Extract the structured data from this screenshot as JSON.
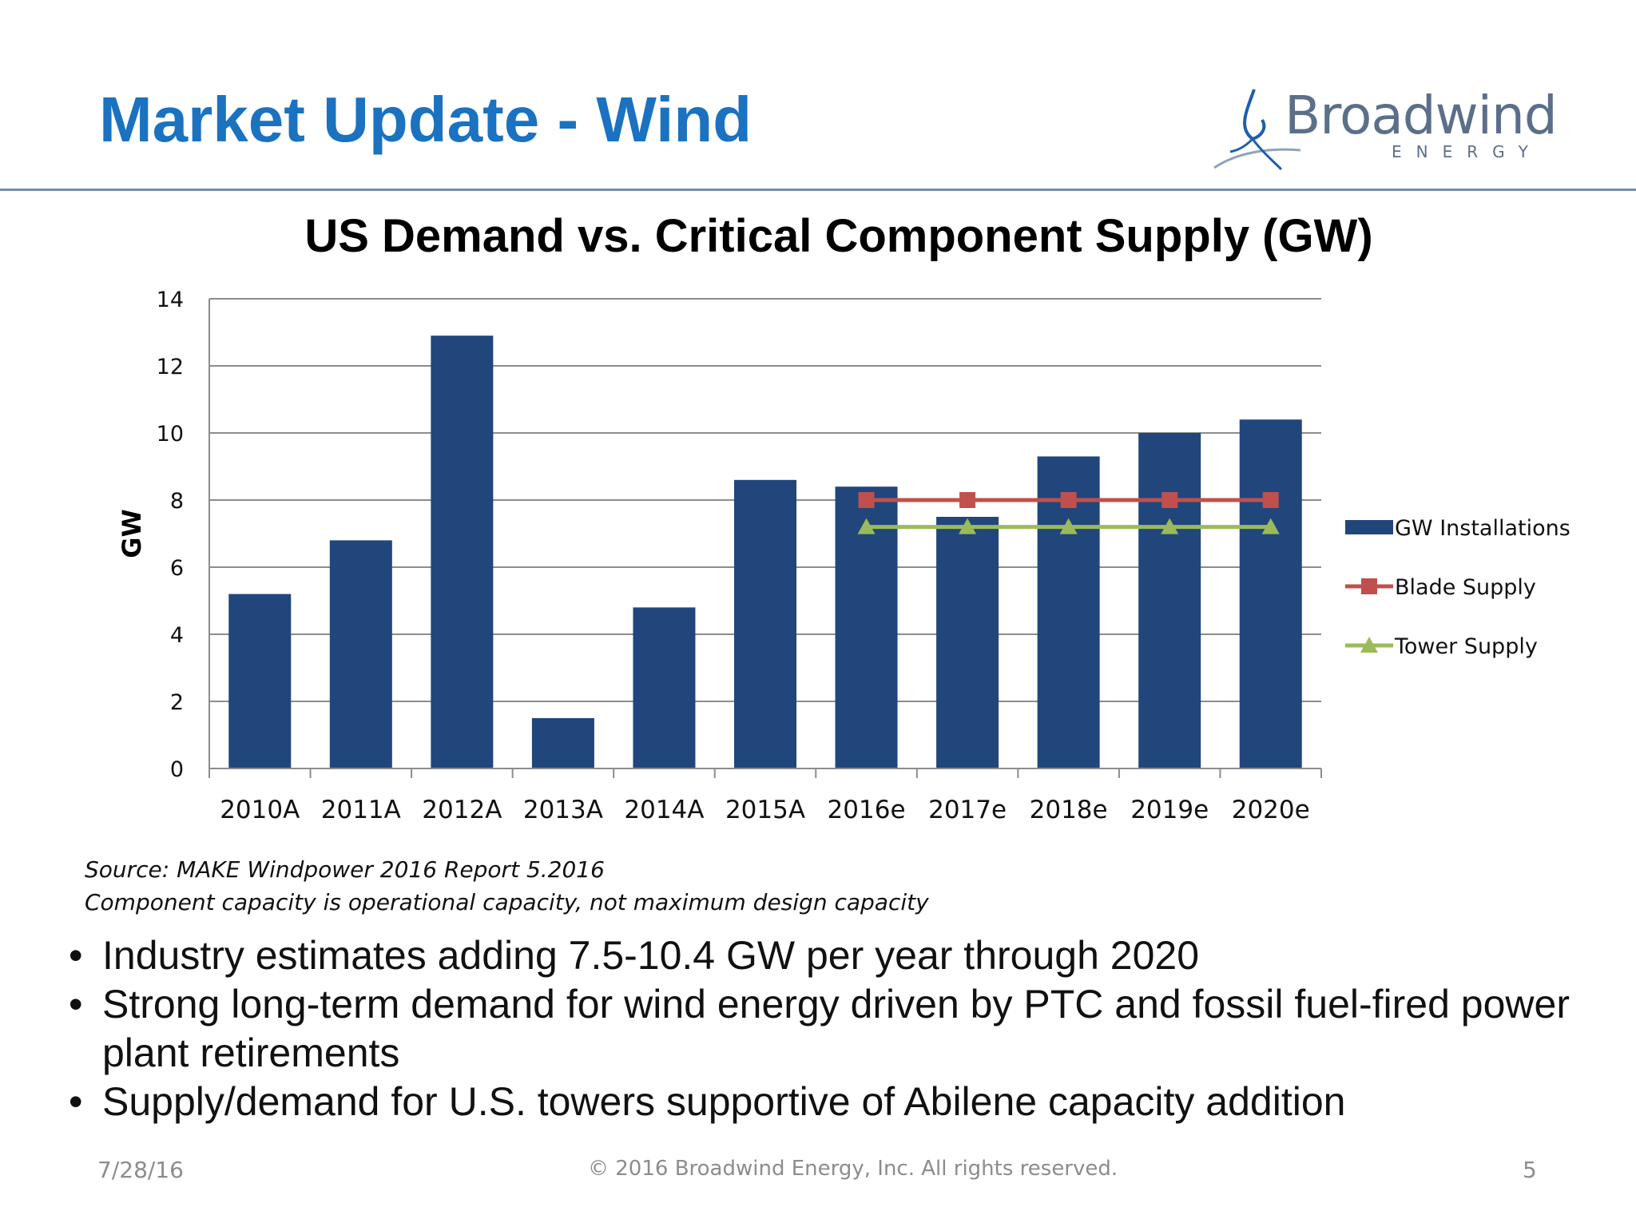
{
  "slide": {
    "title": "Market Update - Wind"
  },
  "logo": {
    "wordmark": "Broadwind",
    "sub": "ENERGY"
  },
  "chart_data": {
    "type": "bar",
    "title": "US Demand vs. Critical Component Supply (GW)",
    "ylabel": "GW",
    "xlabel": "",
    "ylim": [
      0,
      14
    ],
    "yticks": [
      0,
      2,
      4,
      6,
      8,
      10,
      12,
      14
    ],
    "grid": true,
    "legend_position": "right",
    "categories": [
      "2010A",
      "2011A",
      "2012A",
      "2013A",
      "2014A",
      "2015A",
      "2016e",
      "2017e",
      "2018e",
      "2019e",
      "2020e"
    ],
    "series": [
      {
        "name": "GW Installations",
        "type": "bar",
        "color": "#21467c",
        "values": [
          5.2,
          6.8,
          12.9,
          1.5,
          4.8,
          8.6,
          8.4,
          7.5,
          9.3,
          10.0,
          10.4
        ]
      },
      {
        "name": "Blade Supply",
        "type": "line",
        "marker": "square",
        "color": "#c0504d",
        "values": [
          null,
          null,
          null,
          null,
          null,
          null,
          8.0,
          8.0,
          8.0,
          8.0,
          8.0
        ]
      },
      {
        "name": "Tower Supply",
        "type": "line",
        "marker": "triangle",
        "color": "#9bbb59",
        "values": [
          null,
          null,
          null,
          null,
          null,
          null,
          7.2,
          7.2,
          7.2,
          7.2,
          7.2
        ]
      }
    ]
  },
  "source": {
    "line1": "Source:  MAKE Windpower 2016 Report 5.2016",
    "line2": "Component capacity is operational capacity, not maximum design capacity"
  },
  "bullets": [
    "Industry estimates adding 7.5-10.4 GW per year through 2020",
    "Strong long-term demand for wind energy driven by PTC and fossil fuel-fired power plant retirements",
    "Supply/demand for U.S. towers supportive of Abilene capacity addition"
  ],
  "bullet_symbol": "•",
  "footer": {
    "date": "7/28/16",
    "copyright": "© 2016 Broadwind Energy, Inc. All rights reserved.",
    "page": "5"
  }
}
